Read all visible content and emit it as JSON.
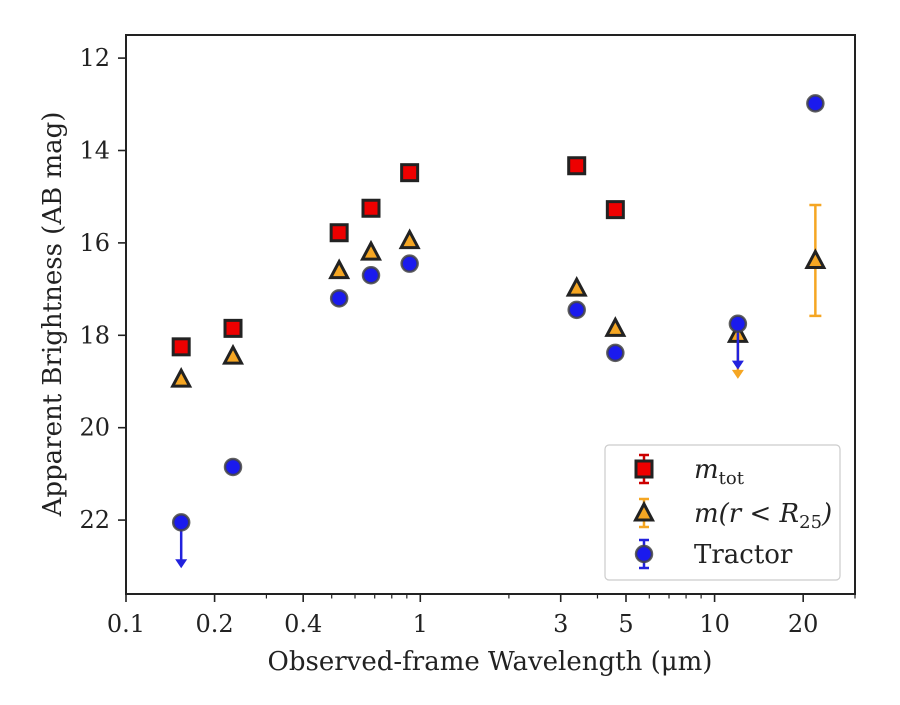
{
  "chart_data": {
    "type": "scatter",
    "x_label": "Observed-frame Wavelength (μm)",
    "y_label": "Apparent Brightness (AB mag)",
    "x_scale": "log",
    "xlim": [
      0.1,
      30
    ],
    "ylim": [
      23.6,
      11.5
    ],
    "y_inverted": true,
    "x_ticks": [
      {
        "value": 0.1,
        "label": "0.1"
      },
      {
        "value": 0.2,
        "label": "0.2"
      },
      {
        "value": 0.4,
        "label": "0.4"
      },
      {
        "value": 1,
        "label": "1"
      },
      {
        "value": 3,
        "label": "3"
      },
      {
        "value": 5,
        "label": "5"
      },
      {
        "value": 10,
        "label": "10"
      },
      {
        "value": 20,
        "label": "20"
      }
    ],
    "y_ticks": [
      {
        "value": 12,
        "label": "12"
      },
      {
        "value": 14,
        "label": "14"
      },
      {
        "value": 16,
        "label": "16"
      },
      {
        "value": 18,
        "label": "18"
      },
      {
        "value": 20,
        "label": "20"
      },
      {
        "value": 22,
        "label": "22"
      }
    ],
    "grid": false,
    "legend_position": "lower-right",
    "series": [
      {
        "key": "m_tot",
        "legend_main": "m",
        "legend_sub": "tot",
        "marker": "square",
        "face_color": "#ee0000",
        "edge_color": "#222222",
        "error_color": "#cc0000",
        "points": [
          {
            "x": 0.154,
            "y": 18.25
          },
          {
            "x": 0.231,
            "y": 17.85
          },
          {
            "x": 0.53,
            "y": 15.78
          },
          {
            "x": 0.68,
            "y": 15.25
          },
          {
            "x": 0.92,
            "y": 14.48
          },
          {
            "x": 3.4,
            "y": 14.33
          },
          {
            "x": 4.6,
            "y": 15.28
          }
        ]
      },
      {
        "key": "m_r_lt_R25",
        "legend_main": "m(r < R",
        "legend_sub": "25",
        "legend_close": ")",
        "marker": "triangle",
        "face_color": "#f5a623",
        "edge_color": "#222222",
        "error_color": "#f5a623",
        "points": [
          {
            "x": 0.154,
            "y": 18.95
          },
          {
            "x": 0.231,
            "y": 18.45
          },
          {
            "x": 0.53,
            "y": 16.6
          },
          {
            "x": 0.68,
            "y": 16.2
          },
          {
            "x": 0.92,
            "y": 15.95
          },
          {
            "x": 3.4,
            "y": 16.98
          },
          {
            "x": 4.6,
            "y": 17.85
          },
          {
            "x": 12.0,
            "y": 17.98,
            "upper_limit": true,
            "limit_to": 18.9
          },
          {
            "x": 22.0,
            "y": 16.38,
            "err_low": 1.2,
            "err_high": 1.2
          }
        ]
      },
      {
        "key": "tractor",
        "legend_main": "Tractor",
        "marker": "circle",
        "face_color": "#1a1aee",
        "edge_color": "#444444",
        "error_color": "#2222dd",
        "points": [
          {
            "x": 0.154,
            "y": 22.05,
            "upper_limit": true,
            "limit_to": 23.0
          },
          {
            "x": 0.231,
            "y": 20.85
          },
          {
            "x": 0.53,
            "y": 17.2
          },
          {
            "x": 0.68,
            "y": 16.7
          },
          {
            "x": 0.92,
            "y": 16.45
          },
          {
            "x": 3.4,
            "y": 17.45
          },
          {
            "x": 4.6,
            "y": 18.38
          },
          {
            "x": 12.0,
            "y": 17.75,
            "upper_limit": true,
            "limit_to": 18.7
          },
          {
            "x": 22.0,
            "y": 12.98
          }
        ]
      }
    ]
  }
}
